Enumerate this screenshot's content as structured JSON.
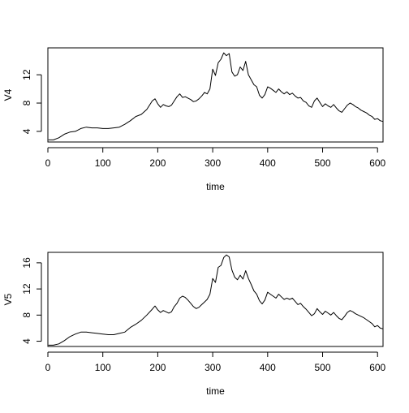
{
  "chart_data": [
    {
      "type": "line",
      "title": "",
      "xlabel": "time",
      "ylabel": "V4",
      "xlim": [
        0,
        610
      ],
      "ylim": [
        2.5,
        15.8
      ],
      "xticks": [
        0,
        100,
        200,
        300,
        400,
        500,
        600
      ],
      "yticks": [
        4,
        8,
        12
      ],
      "grid": false,
      "series": [
        {
          "x": [
            1,
            10,
            20,
            30,
            40,
            50,
            60,
            70,
            80,
            90,
            100,
            110,
            120,
            130,
            140,
            150,
            160,
            170,
            180,
            190,
            195,
            200,
            205,
            210,
            215,
            220,
            225,
            230,
            235,
            240,
            245,
            250,
            255,
            260,
            265,
            270,
            275,
            280,
            285,
            290,
            295,
            300,
            305,
            310,
            315,
            320,
            325,
            330,
            335,
            340,
            345,
            350,
            355,
            360,
            365,
            370,
            375,
            380,
            385,
            390,
            395,
            400,
            405,
            410,
            415,
            420,
            425,
            430,
            435,
            440,
            445,
            450,
            455,
            460,
            465,
            470,
            475,
            480,
            485,
            490,
            495,
            500,
            505,
            510,
            515,
            520,
            525,
            530,
            535,
            540,
            545,
            550,
            555,
            560,
            565,
            570,
            575,
            580,
            585,
            590,
            595,
            600,
            605,
            610
          ],
          "y": [
            2.8,
            2.8,
            3.1,
            3.6,
            3.9,
            4.0,
            4.4,
            4.6,
            4.5,
            4.5,
            4.4,
            4.4,
            4.5,
            4.6,
            5.0,
            5.5,
            6.1,
            6.4,
            7.1,
            8.3,
            8.6,
            7.9,
            7.4,
            7.8,
            7.6,
            7.5,
            7.7,
            8.3,
            8.9,
            9.3,
            8.8,
            8.9,
            8.7,
            8.5,
            8.2,
            8.3,
            8.6,
            9.0,
            9.5,
            9.3,
            10.0,
            12.8,
            11.9,
            13.7,
            14.2,
            15.1,
            14.7,
            15.0,
            12.4,
            11.8,
            12.0,
            13.1,
            12.6,
            13.9,
            12.0,
            11.3,
            10.6,
            10.3,
            9.1,
            8.7,
            9.2,
            10.3,
            10.1,
            9.8,
            9.5,
            10.0,
            9.6,
            9.3,
            9.6,
            9.2,
            9.4,
            9.0,
            8.7,
            8.8,
            8.3,
            8.1,
            7.6,
            7.4,
            8.3,
            8.7,
            8.1,
            7.5,
            7.9,
            7.6,
            7.4,
            7.8,
            7.3,
            6.9,
            6.7,
            7.2,
            7.7,
            8.0,
            7.8,
            7.5,
            7.3,
            7.0,
            6.8,
            6.6,
            6.3,
            6.1,
            5.7,
            5.8,
            5.5,
            5.4
          ]
        }
      ]
    },
    {
      "type": "line",
      "title": "",
      "xlabel": "time",
      "ylabel": "V5",
      "xlim": [
        0,
        610
      ],
      "ylim": [
        3.2,
        17.6
      ],
      "xticks": [
        0,
        100,
        200,
        300,
        400,
        500,
        600
      ],
      "yticks": [
        4,
        8,
        12,
        16
      ],
      "grid": false,
      "series": [
        {
          "x": [
            1,
            10,
            20,
            30,
            40,
            50,
            60,
            70,
            80,
            90,
            100,
            110,
            120,
            130,
            140,
            150,
            160,
            170,
            180,
            190,
            195,
            200,
            205,
            210,
            215,
            220,
            225,
            230,
            235,
            240,
            245,
            250,
            255,
            260,
            265,
            270,
            275,
            280,
            285,
            290,
            295,
            300,
            305,
            310,
            315,
            320,
            325,
            330,
            335,
            340,
            345,
            350,
            355,
            360,
            365,
            370,
            375,
            380,
            385,
            390,
            395,
            400,
            405,
            410,
            415,
            420,
            425,
            430,
            435,
            440,
            445,
            450,
            455,
            460,
            465,
            470,
            475,
            480,
            485,
            490,
            495,
            500,
            505,
            510,
            515,
            520,
            525,
            530,
            535,
            540,
            545,
            550,
            555,
            560,
            565,
            570,
            575,
            580,
            585,
            590,
            595,
            600,
            605,
            610
          ],
          "y": [
            3.4,
            3.4,
            3.6,
            4.1,
            4.7,
            5.1,
            5.4,
            5.4,
            5.3,
            5.2,
            5.1,
            5.0,
            5.0,
            5.2,
            5.4,
            6.1,
            6.6,
            7.2,
            8.0,
            8.9,
            9.4,
            8.8,
            8.4,
            8.7,
            8.5,
            8.3,
            8.5,
            9.3,
            9.8,
            10.6,
            10.9,
            10.7,
            10.3,
            9.8,
            9.3,
            9.0,
            9.2,
            9.6,
            10.0,
            10.4,
            11.2,
            13.6,
            13.0,
            15.3,
            15.6,
            16.8,
            17.2,
            16.9,
            14.9,
            13.8,
            13.4,
            14.1,
            13.5,
            14.8,
            13.6,
            12.7,
            11.7,
            11.2,
            10.2,
            9.7,
            10.3,
            11.5,
            11.2,
            10.9,
            10.6,
            11.2,
            10.8,
            10.4,
            10.6,
            10.4,
            10.6,
            10.1,
            9.6,
            9.8,
            9.3,
            8.9,
            8.4,
            7.9,
            8.2,
            9.0,
            8.5,
            8.1,
            8.6,
            8.3,
            8.0,
            8.4,
            7.9,
            7.5,
            7.3,
            7.8,
            8.4,
            8.7,
            8.5,
            8.2,
            8.0,
            7.8,
            7.6,
            7.3,
            7.0,
            6.7,
            6.2,
            6.4,
            6.0,
            5.9
          ]
        }
      ]
    }
  ]
}
